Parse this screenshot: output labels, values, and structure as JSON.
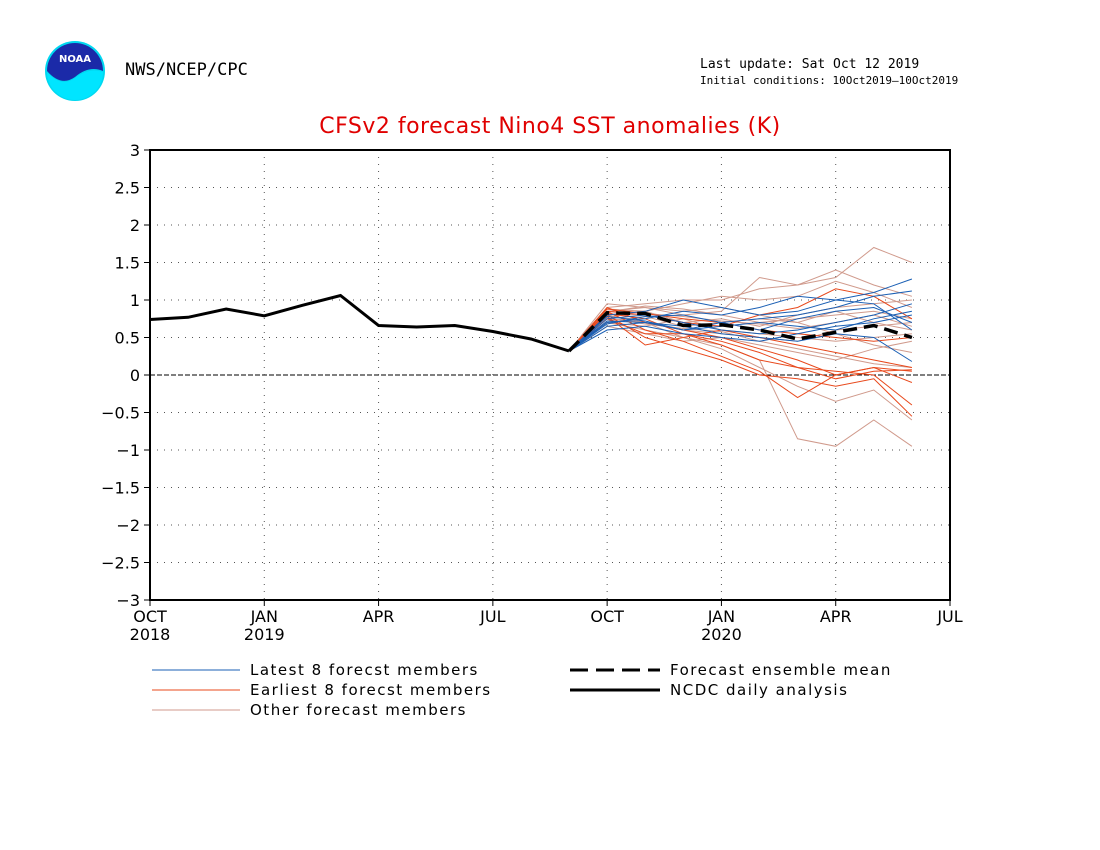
{
  "header": {
    "org": "NWS/NCEP/CPC",
    "last_update": "Last update: Sat Oct 12 2019",
    "initial_conditions": "Initial conditions: 10Oct2019–10Oct2019",
    "logo_text": "NOAA"
  },
  "chart_data": {
    "type": "line",
    "title": "CFSv2 forecast Nino4 SST anomalies (K)",
    "ylim": [
      -3,
      3
    ],
    "y_ticks": [
      3,
      2.5,
      2,
      1.5,
      1,
      0.5,
      0,
      -0.5,
      -1,
      -1.5,
      -2,
      -2.5,
      -3
    ],
    "x_ticks": [
      {
        "label": "OCT",
        "year": "2018"
      },
      {
        "label": "JAN",
        "year": "2019"
      },
      {
        "label": "APR",
        "year": ""
      },
      {
        "label": "JUL",
        "year": ""
      },
      {
        "label": "OCT",
        "year": ""
      },
      {
        "label": "JAN",
        "year": "2020"
      },
      {
        "label": "APR",
        "year": ""
      },
      {
        "label": "JUL",
        "year": ""
      }
    ],
    "x_range": [
      "2018-10",
      "2020-07"
    ],
    "grid": true,
    "legend": [
      {
        "label": "Latest 8 forecst members",
        "color": "#1a5fb4",
        "style": "thin"
      },
      {
        "label": "Earliest 8 forecst members",
        "color": "#e8481b",
        "style": "thin"
      },
      {
        "label": "Other forecast members",
        "color": "#d09a8c",
        "style": "thin"
      },
      {
        "label": "Forecast ensemble mean",
        "color": "#000000",
        "style": "dashed"
      },
      {
        "label": "NCDC daily analysis",
        "color": "#000000",
        "style": "solid"
      }
    ],
    "forecast_months": [
      "2019-10",
      "2019-11",
      "2019-12",
      "2020-01",
      "2020-02",
      "2020-03",
      "2020-04",
      "2020-05",
      "2020-06"
    ],
    "series": [
      {
        "name": "NCDC daily analysis",
        "kind": "analysis",
        "x": [
          "2018-10",
          "2018-11",
          "2018-12",
          "2019-01",
          "2019-02",
          "2019-03",
          "2019-04",
          "2019-05",
          "2019-06",
          "2019-07",
          "2019-08",
          "2019-09"
        ],
        "values": [
          0.74,
          0.77,
          0.88,
          0.79,
          0.93,
          1.06,
          0.66,
          0.64,
          0.66,
          0.58,
          0.48,
          0.32
        ]
      },
      {
        "name": "Forecast ensemble mean",
        "kind": "mean",
        "x": [
          "2019-09",
          "2019-10",
          "2019-11",
          "2019-12",
          "2020-01",
          "2020-02",
          "2020-03",
          "2020-04",
          "2020-05",
          "2020-06"
        ],
        "values": [
          0.32,
          0.83,
          0.82,
          0.66,
          0.67,
          0.6,
          0.48,
          0.57,
          0.66,
          0.5
        ]
      }
    ],
    "members": {
      "latest": [
        [
          0.7,
          0.75,
          0.85,
          0.8,
          0.9,
          1.05,
          1.0,
          1.1,
          1.28
        ],
        [
          0.65,
          0.7,
          0.6,
          0.7,
          0.75,
          0.8,
          0.9,
          1.05,
          1.12
        ],
        [
          0.75,
          0.8,
          0.7,
          0.6,
          0.55,
          0.6,
          0.7,
          0.8,
          0.95
        ],
        [
          0.8,
          0.85,
          1.0,
          0.9,
          0.8,
          0.85,
          1.0,
          0.95,
          0.6
        ],
        [
          0.6,
          0.65,
          0.55,
          0.5,
          0.45,
          0.55,
          0.65,
          0.7,
          0.8
        ],
        [
          0.72,
          0.7,
          0.65,
          0.55,
          0.5,
          0.45,
          0.55,
          0.5,
          0.18
        ],
        [
          0.68,
          0.78,
          0.8,
          0.7,
          0.6,
          0.75,
          0.85,
          0.9,
          0.7
        ],
        [
          0.78,
          0.72,
          0.6,
          0.65,
          0.7,
          0.65,
          0.6,
          0.75,
          0.85
        ]
      ],
      "earliest": [
        [
          0.85,
          0.6,
          0.45,
          0.25,
          0.05,
          -0.3,
          0.0,
          0.1,
          -0.1
        ],
        [
          0.8,
          0.5,
          0.35,
          0.2,
          0.0,
          -0.05,
          -0.15,
          -0.05,
          -0.55
        ],
        [
          0.9,
          0.7,
          0.6,
          0.5,
          0.35,
          0.2,
          0.0,
          0.1,
          0.05
        ],
        [
          0.75,
          0.55,
          0.55,
          0.45,
          0.3,
          0.1,
          0.05,
          0.0,
          -0.4
        ],
        [
          0.88,
          0.82,
          0.75,
          0.7,
          0.6,
          0.55,
          0.5,
          0.45,
          0.5
        ],
        [
          0.78,
          0.4,
          0.5,
          0.6,
          0.5,
          0.4,
          0.3,
          0.2,
          0.1
        ],
        [
          0.85,
          0.8,
          0.7,
          0.65,
          0.8,
          0.9,
          1.15,
          1.05,
          0.75
        ],
        [
          0.82,
          0.75,
          0.55,
          0.4,
          0.2,
          0.1,
          -0.05,
          0.05,
          0.07
        ]
      ],
      "other": [
        [
          0.9,
          0.95,
          1.0,
          1.0,
          1.15,
          1.2,
          1.3,
          1.7,
          1.5
        ],
        [
          0.85,
          0.9,
          0.8,
          0.85,
          1.3,
          1.2,
          1.4,
          1.2,
          1.05
        ],
        [
          0.7,
          0.6,
          0.5,
          0.4,
          0.2,
          -0.85,
          -0.95,
          -0.6,
          -0.95
        ],
        [
          0.75,
          0.7,
          0.5,
          0.35,
          0.1,
          -0.15,
          -0.35,
          -0.2,
          -0.6
        ],
        [
          0.8,
          0.85,
          0.95,
          1.05,
          1.0,
          1.05,
          1.25,
          1.1,
          0.9
        ],
        [
          0.65,
          0.55,
          0.45,
          0.5,
          0.4,
          0.3,
          0.2,
          0.35,
          0.45
        ],
        [
          0.95,
          0.9,
          0.85,
          0.9,
          0.8,
          0.7,
          0.85,
          0.7,
          0.6
        ],
        [
          0.7,
          0.65,
          0.75,
          0.6,
          0.55,
          0.5,
          0.45,
          0.5,
          0.55
        ],
        [
          0.88,
          0.85,
          0.7,
          0.75,
          0.65,
          0.8,
          0.9,
          0.95,
          1.0
        ],
        [
          0.8,
          0.7,
          0.6,
          0.55,
          0.5,
          0.45,
          0.6,
          0.65,
          0.7
        ],
        [
          0.72,
          0.78,
          0.65,
          0.7,
          0.75,
          0.7,
          0.55,
          0.4,
          0.3
        ],
        [
          0.76,
          0.68,
          0.62,
          0.58,
          0.45,
          0.35,
          0.25,
          0.15,
          0.1
        ],
        [
          0.84,
          0.92,
          0.88,
          0.8,
          0.7,
          0.75,
          0.8,
          0.85,
          0.75
        ],
        [
          0.78,
          0.82,
          0.78,
          0.72,
          0.68,
          0.62,
          0.7,
          0.8,
          0.65
        ]
      ]
    }
  }
}
